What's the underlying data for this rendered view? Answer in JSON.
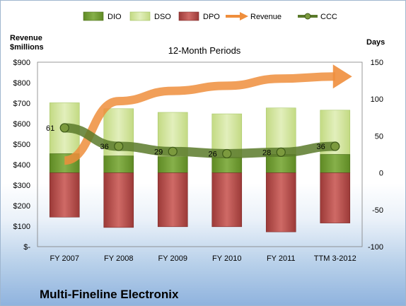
{
  "chart_data": {
    "type": "bar",
    "subtitle": "12-Month Periods",
    "company": "Multi-Fineline Electronix",
    "y_left_label_lines": [
      "Revenue",
      "$millions"
    ],
    "y_right_label": "Days",
    "y_left_ticks": [
      "$-",
      "$100",
      "$200",
      "$300",
      "$400",
      "$500",
      "$600",
      "$700",
      "$800",
      "$900"
    ],
    "y_left_lim": [
      0,
      900
    ],
    "y_right_ticks": [
      "-100",
      "-50",
      "0",
      "50",
      "100",
      "150"
    ],
    "y_right_lim": [
      -100,
      150
    ],
    "categories": [
      "FY 2007",
      "FY 2008",
      "FY 2009",
      "FY 2010",
      "FY 2011",
      "TTM 3-2012"
    ],
    "stacked_series_days": [
      {
        "name": "DIO",
        "color": "#6f9a2e",
        "values": [
          26,
          23,
          22,
          21,
          25,
          25
        ]
      },
      {
        "name": "DSO",
        "color": "#cfe39a",
        "values": [
          95,
          87,
          82,
          80,
          88,
          85
        ]
      },
      {
        "name": "DPO",
        "color": "#b54a47",
        "values": [
          -60,
          -74,
          -73,
          -73,
          -80,
          -68
        ]
      }
    ],
    "line_series": [
      {
        "name": "Revenue",
        "axis": "left",
        "color": "#ef8e3c",
        "values": [
          420,
          710,
          760,
          785,
          820,
          830
        ]
      },
      {
        "name": "CCC",
        "axis": "right",
        "color": "#5a7a2a",
        "values": [
          61,
          36,
          29,
          26,
          28,
          36
        ],
        "labels": [
          "61",
          "36",
          "29",
          "26",
          "28",
          "36"
        ]
      }
    ],
    "legend": [
      "DIO",
      "DSO",
      "DPO",
      "Revenue",
      "CCC"
    ],
    "legend_position": "top"
  }
}
